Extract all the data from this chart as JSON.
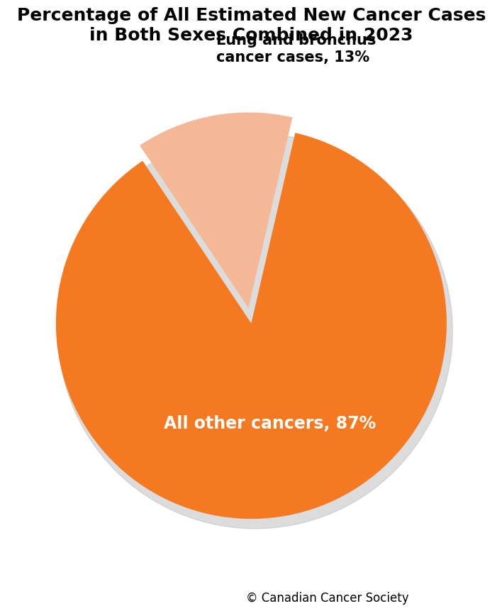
{
  "title": "Percentage of All Estimated New Cancer Cases\nin Both Sexes Combined in 2023",
  "slices": [
    87,
    13
  ],
  "colors": [
    "#F47920",
    "#F4B896"
  ],
  "explode": [
    0,
    0.08
  ],
  "startangle": 77,
  "label_inside": "All other cancers, 87%",
  "label_outside": "Lung and bronchus\ncancer cases, 13%",
  "footnote": "© Canadian Cancer Society",
  "title_fontsize": 18,
  "inside_label_fontsize": 17,
  "outside_label_fontsize": 15,
  "footnote_fontsize": 12,
  "background_color": "#ffffff"
}
